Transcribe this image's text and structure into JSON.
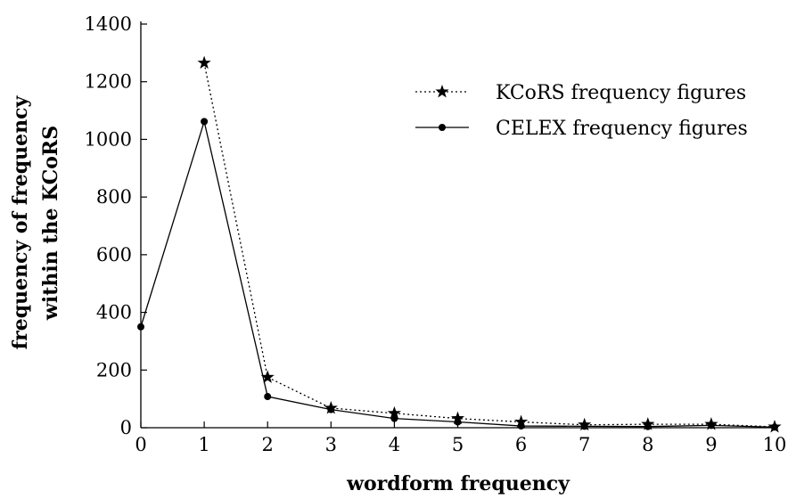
{
  "chart_data": {
    "type": "line",
    "xlabel": "wordform frequency",
    "ylabel_lines": [
      "frequency of frequency",
      "within the KCoRS"
    ],
    "x": [
      0,
      1,
      2,
      3,
      4,
      5,
      6,
      7,
      8,
      9,
      10
    ],
    "xlim": [
      0,
      10
    ],
    "ylim": [
      0,
      1400
    ],
    "xticks": [
      "0",
      "1",
      "2",
      "3",
      "4",
      "5",
      "6",
      "7",
      "8",
      "9",
      "10"
    ],
    "yticks": [
      "0",
      "200",
      "400",
      "600",
      "800",
      "1000",
      "1200",
      "1400"
    ],
    "grid": false,
    "legend_position": "top-right",
    "series": [
      {
        "name": "KCoRS frequency figures",
        "marker": "star",
        "line_style": "dotted",
        "x": [
          1,
          2,
          3,
          4,
          5,
          6,
          7,
          8,
          9,
          10
        ],
        "values": [
          1265,
          175,
          68,
          50,
          32,
          20,
          10,
          12,
          12,
          3
        ]
      },
      {
        "name": "CELEX frequency figures",
        "marker": "dot",
        "line_style": "solid",
        "x": [
          0,
          1,
          2,
          3,
          4,
          5,
          6,
          7,
          8,
          9,
          10
        ],
        "values": [
          350,
          1062,
          108,
          63,
          32,
          20,
          6,
          5,
          4,
          8,
          2
        ]
      }
    ],
    "colors": {
      "axis": "#000000",
      "line": "#000000"
    }
  }
}
